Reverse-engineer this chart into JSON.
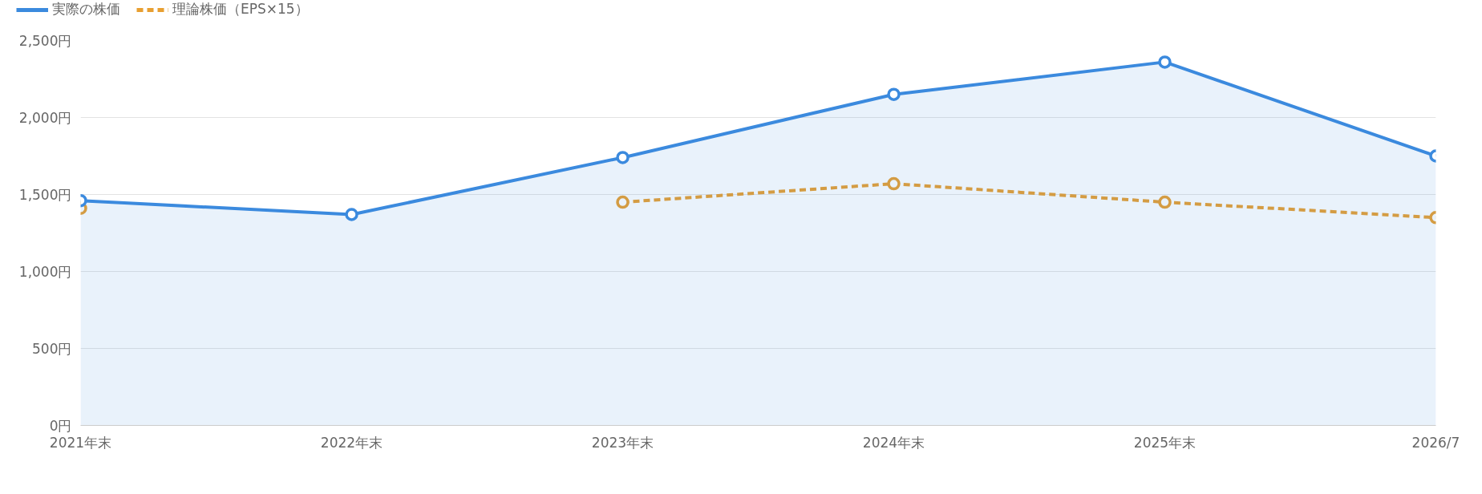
{
  "chart_data": {
    "type": "line",
    "categories": [
      "2021年末",
      "2022年末",
      "2023年末",
      "2024年末",
      "2025年末",
      "2026/7"
    ],
    "series": [
      {
        "name": "実際の株価",
        "type": "area",
        "color": "#3b8ade",
        "values": [
          1460,
          1370,
          1740,
          2150,
          2360,
          1750
        ]
      },
      {
        "name": "理論株価（EPS×15）",
        "color": "#e89f31",
        "line_style": "dashed",
        "values": [
          1410,
          null,
          1450,
          1570,
          1450,
          1350
        ]
      }
    ],
    "ylim": [
      0,
      2500
    ],
    "yticks": [
      {
        "value": 0,
        "label": "0円"
      },
      {
        "value": 500,
        "label": "500円"
      },
      {
        "value": 1000,
        "label": "1,000円"
      },
      {
        "value": 1500,
        "label": "1,500円"
      },
      {
        "value": 2000,
        "label": "2,000円"
      },
      {
        "value": 2500,
        "label": "2,500円"
      }
    ],
    "grid": "y",
    "legend": "top left",
    "marker": "circle"
  }
}
